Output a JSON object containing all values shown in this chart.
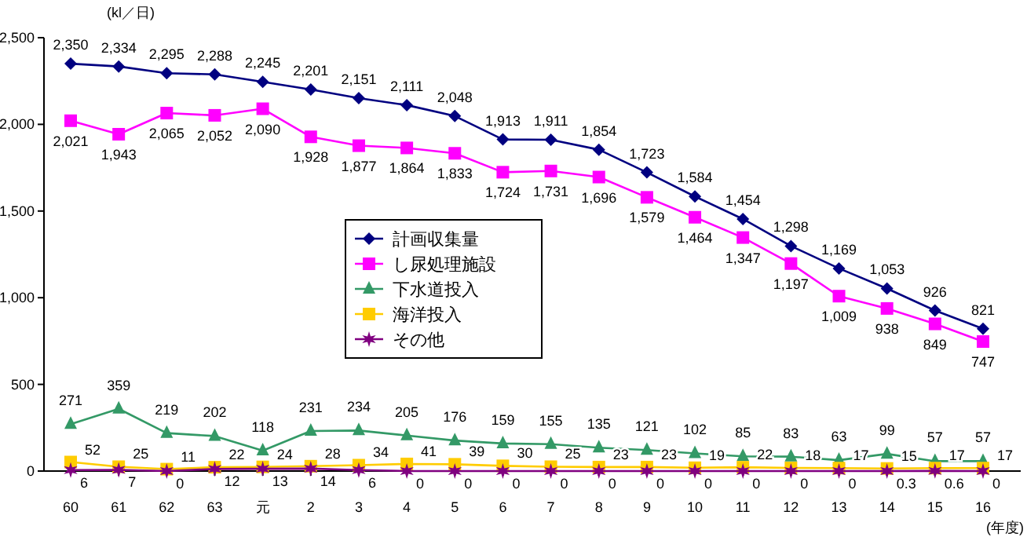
{
  "chart_data": {
    "type": "line",
    "ylabel": "(kl／日)",
    "xlabel": "(年度)",
    "legend": "center",
    "grid": false,
    "categories": [
      "60",
      "61",
      "62",
      "63",
      "元",
      "2",
      "3",
      "4",
      "5",
      "6",
      "7",
      "8",
      "9",
      "10",
      "11",
      "12",
      "13",
      "14",
      "15",
      "16"
    ],
    "ylim": [
      0,
      2500
    ],
    "yticks": [
      0,
      500,
      {
        "value": 1000,
        "label": "1,000"
      },
      {
        "value": 1500,
        "label": "1,500"
      },
      {
        "value": 2000,
        "label": "2,000"
      },
      {
        "value": 2500,
        "label": "2,500"
      }
    ],
    "series": [
      {
        "name": "計画収集量",
        "color": "#000080",
        "marker": "diamond",
        "values": [
          2350,
          2334,
          2295,
          2288,
          2245,
          2201,
          2151,
          2111,
          2048,
          1913,
          1911,
          1854,
          1723,
          1584,
          1454,
          1298,
          1169,
          1053,
          926,
          821
        ],
        "value_labels": [
          "2,350",
          "2,334",
          "2,295",
          "2,288",
          "2,245",
          "2,201",
          "2,151",
          "2,111",
          "2,048",
          "1,913",
          "1,911",
          "1,854",
          "1,723",
          "1,584",
          "1,454",
          "1,298",
          "1,169",
          "1,053",
          "926",
          "821"
        ]
      },
      {
        "name": "し尿処理施設",
        "color": "#ff00ff",
        "marker": "square",
        "values": [
          2021,
          1943,
          2065,
          2052,
          2090,
          1928,
          1877,
          1864,
          1833,
          1724,
          1731,
          1696,
          1579,
          1464,
          1347,
          1197,
          1009,
          938,
          849,
          747
        ],
        "value_labels": [
          "2,021",
          "1,943",
          "2,065",
          "2,052",
          "2,090",
          "1,928",
          "1,877",
          "1,864",
          "1,833",
          "1,724",
          "1,731",
          "1,696",
          "1,579",
          "1,464",
          "1,347",
          "1,197",
          "1,009",
          "938",
          "849",
          "747"
        ]
      },
      {
        "name": "下水道投入",
        "color": "#339966",
        "marker": "triangle",
        "values": [
          271,
          359,
          219,
          202,
          118,
          231,
          234,
          205,
          176,
          159,
          155,
          135,
          121,
          102,
          85,
          83,
          63,
          99,
          57,
          57
        ],
        "value_labels": [
          "271",
          "359",
          "219",
          "202",
          "118",
          "231",
          "234",
          "205",
          "176",
          "159",
          "155",
          "135",
          "121",
          "102",
          "85",
          "83",
          "63",
          "99",
          "57",
          "57"
        ]
      },
      {
        "name": "海洋投入",
        "color": "#ffcc00",
        "marker": "square",
        "values": [
          52,
          25,
          11,
          22,
          24,
          28,
          34,
          41,
          39,
          30,
          25,
          23,
          23,
          19,
          22,
          18,
          17,
          15,
          17,
          17
        ],
        "value_labels": [
          "52",
          "25",
          "11",
          "22",
          "24",
          "28",
          "34",
          "41",
          "39",
          "30",
          "25",
          "23",
          "23",
          "19",
          "22",
          "18",
          "17",
          "15",
          "17",
          "17"
        ]
      },
      {
        "name": "その他",
        "color": "#800080",
        "marker": "cross",
        "values": [
          6,
          7,
          0,
          12,
          13,
          14,
          6,
          0,
          0,
          0,
          0,
          0,
          0,
          0,
          0,
          0,
          0,
          0.3,
          0.6,
          0
        ],
        "value_labels": [
          "6",
          "7",
          "0",
          "12",
          "13",
          "14",
          "6",
          "0",
          "0",
          "0",
          "0",
          "0",
          "0",
          "0",
          "0",
          "0",
          "0",
          "0.3",
          "0.6",
          "0"
        ]
      }
    ]
  }
}
